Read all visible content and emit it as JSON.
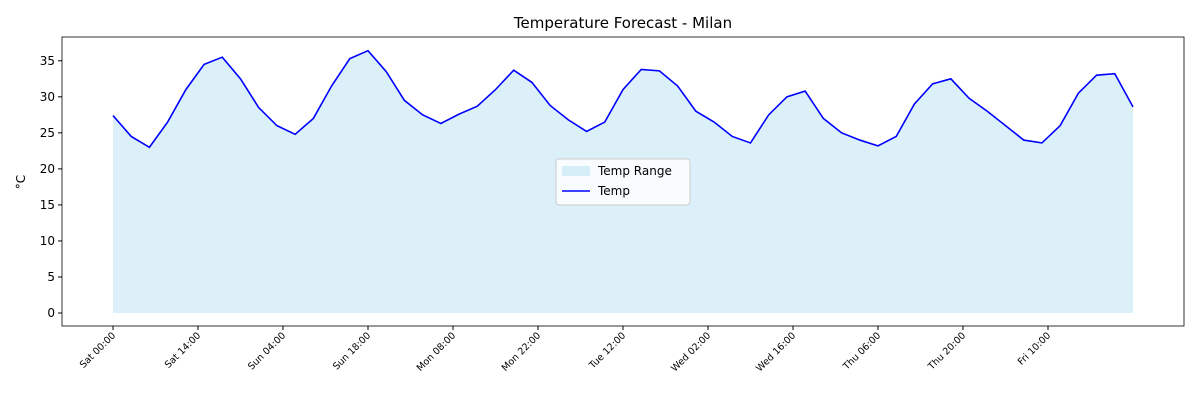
{
  "chart_data": {
    "type": "line",
    "title": "Temperature Forecast - Milan",
    "ylabel": "°C",
    "x": [
      0,
      3,
      6,
      9,
      12,
      15,
      18,
      21,
      24,
      27,
      30,
      33,
      36,
      39,
      42,
      45,
      48,
      51,
      54,
      57,
      60,
      63,
      66,
      69,
      72,
      75,
      78,
      81,
      84,
      87,
      90,
      93,
      96,
      99,
      102,
      105,
      108,
      111,
      114,
      117,
      120,
      123,
      126,
      129,
      132,
      135,
      138,
      141,
      144,
      147,
      150,
      153,
      156,
      159,
      162,
      165,
      168
    ],
    "series": [
      {
        "name": "Temp",
        "color": "#0000ff",
        "values": [
          27.4,
          24.5,
          23.0,
          26.5,
          31.0,
          34.5,
          35.5,
          32.5,
          28.5,
          26.0,
          24.8,
          27.0,
          31.5,
          35.3,
          36.4,
          33.5,
          29.5,
          27.5,
          26.3,
          27.6,
          28.7,
          31.0,
          33.7,
          32.0,
          28.8,
          26.8,
          25.2,
          26.5,
          31.0,
          33.8,
          33.6,
          31.5,
          28.0,
          26.5,
          24.5,
          23.6,
          27.5,
          30.0,
          30.8,
          27.0,
          25.0,
          24.0,
          23.2,
          24.5,
          29.0,
          31.8,
          32.5,
          29.8,
          28.0,
          26.0,
          24.0,
          23.6,
          26.0,
          30.5,
          33.0,
          33.2,
          28.6
        ]
      }
    ],
    "area": {
      "name": "Temp Range",
      "color": "#87ceeb",
      "opacity": 0.3,
      "base": 0
    },
    "xlim": [
      -8.4,
      176.4
    ],
    "xticks": [
      {
        "value": 0,
        "label": "Sat 00:00"
      },
      {
        "value": 14,
        "label": "Sat 14:00"
      },
      {
        "value": 28,
        "label": "Sun 04:00"
      },
      {
        "value": 42,
        "label": "Sun 18:00"
      },
      {
        "value": 56,
        "label": "Mon 08:00"
      },
      {
        "value": 70,
        "label": "Mon 22:00"
      },
      {
        "value": 84,
        "label": "Tue 12:00"
      },
      {
        "value": 98,
        "label": "Wed 02:00"
      },
      {
        "value": 112,
        "label": "Wed 16:00"
      },
      {
        "value": 126,
        "label": "Thu 06:00"
      },
      {
        "value": 140,
        "label": "Thu 20:00"
      },
      {
        "value": 154,
        "label": "Fri 10:00"
      }
    ],
    "ylim": [
      -1.8,
      38.3
    ],
    "yticks": [
      0,
      5,
      10,
      15,
      20,
      25,
      30,
      35
    ],
    "grid": false,
    "legend": "center"
  }
}
